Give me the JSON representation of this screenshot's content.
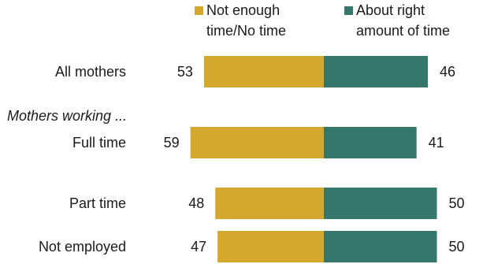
{
  "chart_data": {
    "type": "bar",
    "subtype": "diverging-stacked",
    "legend": {
      "placement": "top-right",
      "entries": [
        {
          "lines": [
            "Not enough",
            "time/No time"
          ],
          "color": "#d4a82c"
        },
        {
          "lines": [
            "About right",
            "amount of time"
          ],
          "color": "#35776a"
        }
      ]
    },
    "group_heading": "Mothers working ...",
    "categories": [
      "All mothers",
      "Full time",
      "Part time",
      "Not employed"
    ],
    "series": [
      {
        "name": "Not enough time/No time",
        "color": "#d4a82c",
        "values": [
          53,
          59,
          48,
          47
        ]
      },
      {
        "name": "About right amount of time",
        "color": "#35776a",
        "values": [
          46,
          41,
          50,
          50
        ]
      }
    ],
    "value_labels": {
      "left": [
        "53",
        "59",
        "48",
        "47"
      ],
      "right": [
        "46",
        "41",
        "50",
        "50"
      ]
    }
  }
}
